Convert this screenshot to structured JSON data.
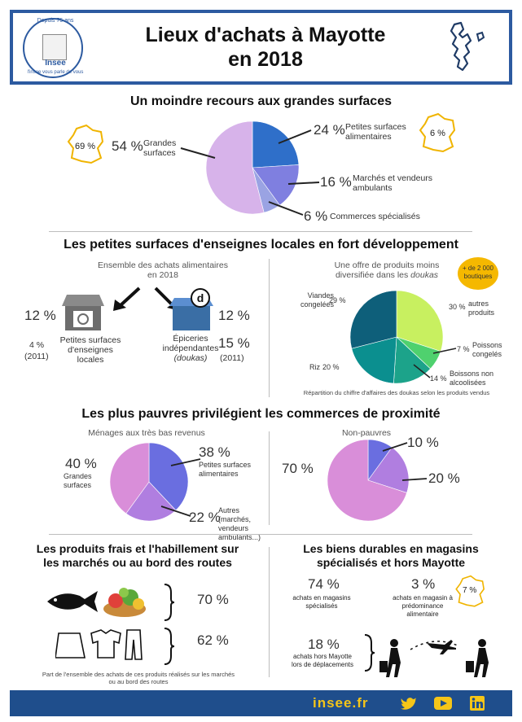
{
  "header": {
    "title_line1": "Lieux d'achats à Mayotte",
    "title_line2": "en 2018",
    "logo_top": "Depuis 75 ans",
    "logo_name": "Insee",
    "logo_bottom": "l'insee vous parle de vous"
  },
  "section1": {
    "title": "Un moindre recours aux grandes surfaces",
    "france_left": "69 %",
    "france_right": "6 %",
    "labels": [
      {
        "pct": "54 %",
        "text": "Grandes surfaces"
      },
      {
        "pct": "24 %",
        "text": "Petites surfaces alimentaires"
      },
      {
        "pct": "16 %",
        "text": "Marchés et vendeurs ambulants"
      },
      {
        "pct": "6 %",
        "text": "Commerces spécialisés"
      }
    ]
  },
  "section2": {
    "title": "Les petites surfaces d'enseignes locales en fort développement",
    "left_caption": "Ensemble des achats alimentaires en 2018",
    "shop_pct": "12 %",
    "shop_old": "4 %",
    "shop_year": "(2011)",
    "shop_label": "Petites surfaces d'enseignes locales",
    "epi_pct": "12 %",
    "epi_old": "15 %",
    "epi_year": "(2011)",
    "epi_label1": "Épiceries indépendantes",
    "epi_label2": "(doukas)",
    "epi_letter": "d",
    "right_caption1": "Une offre de produits moins",
    "right_caption2": "diversifiée dans les",
    "right_caption_em": "doukas",
    "badge": "+ de 2 000 boutiques",
    "note": "Répartition du chiffre d'affaires des doukas selon les produits vendus",
    "labels": [
      {
        "pct": "29 %",
        "text": "Viandes congelées"
      },
      {
        "pct": "30 %",
        "text": "autres produits"
      },
      {
        "pct": "7 %",
        "text": "Poissons congelés"
      },
      {
        "pct": "14 %",
        "text": "Boissons non alcoolisées"
      },
      {
        "pct": "20 %",
        "text": "Riz"
      }
    ]
  },
  "section3": {
    "title": "Les plus pauvres privilégient les commerces de proximité",
    "left_caption": "Ménages aux très bas revenus",
    "right_caption": "Non-pauvres",
    "left_labels": [
      {
        "pct": "40 %",
        "text": "Grandes surfaces"
      },
      {
        "pct": "38 %",
        "text": "Petites surfaces alimentaires"
      },
      {
        "pct": "22 %",
        "text": "Autres (marchés, vendeurs ambulants...)"
      }
    ],
    "right_labels": [
      {
        "pct": "70 %"
      },
      {
        "pct": "10 %"
      },
      {
        "pct": "20 %"
      }
    ]
  },
  "section4": {
    "title_line1": "Les produits frais et l'habillement sur",
    "title_line2": "les marchés ou au bord des routes",
    "fresh_pct": "70 %",
    "clothes_pct": "62 %",
    "note_line1": "Part de l'ensemble des achats de ces produits réalisés sur les marchés",
    "note_line2": "ou au bord des routes"
  },
  "section5": {
    "title_line1": "Les biens durables en magasins",
    "title_line2": "spécialisés et hors Mayotte",
    "a_pct": "74 %",
    "a_text1": "achats en magasins",
    "a_text2": "spécialisés",
    "b_pct": "3 %",
    "b_text1": "achats en magasin à",
    "b_text2": "prédominance",
    "b_text3": "alimentaire",
    "france": "7 %",
    "c_pct": "18 %",
    "c_text1": "achats hors Mayotte",
    "c_text2": "lors de déplacements"
  },
  "footer": {
    "site": "insee.fr"
  },
  "chart_data": [
    {
      "type": "pie",
      "title": "Un moindre recours aux grandes surfaces",
      "categories": [
        "Petites surfaces alimentaires",
        "Marchés et vendeurs ambulants",
        "Commerces spécialisés",
        "Grandes surfaces"
      ],
      "values": [
        24,
        16,
        6,
        54
      ],
      "colors": [
        "#2f6fc9",
        "#7f7fe0",
        "#9aa3e3",
        "#d7b3ea"
      ]
    },
    {
      "type": "pie",
      "title": "Une offre de produits moins diversifiée dans les doukas",
      "categories": [
        "autres produits",
        "Poissons congelés",
        "Boissons non alcoolisées",
        "Riz",
        "Viandes congelées"
      ],
      "values": [
        30,
        7,
        14,
        20,
        29
      ],
      "colors": [
        "#c8f060",
        "#4fd16e",
        "#1ca38a",
        "#0b8f8f",
        "#0e5f7a"
      ]
    },
    {
      "type": "pie",
      "title": "Ménages aux très bas revenus",
      "categories": [
        "Petites surfaces alimentaires",
        "Autres (marchés, vendeurs ambulants...)",
        "Grandes surfaces"
      ],
      "values": [
        38,
        22,
        40
      ],
      "colors": [
        "#6a6ee0",
        "#b07ee0",
        "#d98ed9"
      ]
    },
    {
      "type": "pie",
      "title": "Non-pauvres",
      "categories": [
        "Petites surfaces alimentaires",
        "Autres",
        "Grandes surfaces"
      ],
      "values": [
        10,
        20,
        70
      ],
      "colors": [
        "#6a6ee0",
        "#b07ee0",
        "#d98ed9"
      ]
    }
  ]
}
